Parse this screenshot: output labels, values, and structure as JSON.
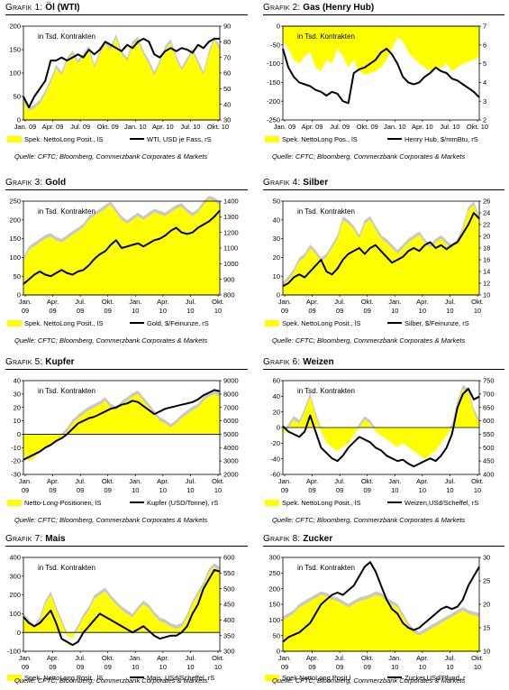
{
  "source_label": "Quelle: CFTC; Bloomberg, Commerzbank Corporates & Markets",
  "colors": {
    "area": "#ffff00",
    "area_shadow": "#c8c8c8",
    "line": "#000000",
    "axis": "#000000"
  },
  "chart_data": [
    {
      "id": "grafik1",
      "type": "area+line",
      "title_prefix": "Grafik 1:",
      "title_name": "Öl (WTI)",
      "note": "in Tsd. Kontrakten",
      "x_labels": [
        [
          "Jan. 09"
        ],
        [
          "Apr. 09"
        ],
        [
          "Jul. 09"
        ],
        [
          "Okt. 09"
        ],
        [
          "Jan. 10"
        ],
        [
          "Apr. 10"
        ],
        [
          "Jul. 10"
        ],
        [
          "Okt. 10"
        ]
      ],
      "left_axis": {
        "min": 0,
        "max": 200,
        "ticks": [
          0,
          50,
          100,
          150,
          200
        ]
      },
      "right_axis": {
        "min": 30,
        "max": 90,
        "ticks": [
          30,
          40,
          50,
          60,
          70,
          80,
          90
        ]
      },
      "area_series": {
        "name": "Spek. NettoLong Posit., lS",
        "axis": "left",
        "values": [
          40,
          20,
          25,
          35,
          55,
          80,
          110,
          95,
          125,
          140,
          120,
          135,
          150,
          110,
          140,
          160,
          150,
          175,
          140,
          125,
          160,
          170,
          140,
          120,
          95,
          120,
          150,
          165,
          130,
          105,
          125,
          145,
          120,
          95,
          140,
          170,
          150
        ]
      },
      "line_series": {
        "name": "WTI, USD je Fass, rS",
        "axis": "right",
        "values": [
          45,
          38,
          45,
          50,
          55,
          68,
          68,
          70,
          68,
          70,
          72,
          70,
          75,
          72,
          75,
          80,
          78,
          76,
          74,
          78,
          76,
          80,
          82,
          80,
          72,
          70,
          74,
          76,
          74,
          76,
          75,
          73,
          78,
          76,
          80,
          82,
          82
        ]
      }
    },
    {
      "id": "grafik2",
      "type": "area+line",
      "title_prefix": "Grafik 2:",
      "title_name": "Gas (Henry Hub)",
      "note": "in Tsd. Kontrakten",
      "x_labels": [
        [
          "Jan. 09"
        ],
        [
          "Apr. 09"
        ],
        [
          "Jul. 09"
        ],
        [
          "Okt. 09"
        ],
        [
          "Jan. 10"
        ],
        [
          "Apr. 10"
        ],
        [
          "Jul. 10"
        ],
        [
          "Okt. 10"
        ]
      ],
      "left_axis": {
        "min": -250,
        "max": 0,
        "ticks": [
          -250,
          -200,
          -150,
          -100,
          -50,
          0
        ]
      },
      "right_axis": {
        "min": 2,
        "max": 7,
        "ticks": [
          2,
          3,
          4,
          5,
          6,
          7
        ]
      },
      "area_series": {
        "name": "Spek. NettoLong Pos., lS",
        "axis": "left",
        "values": [
          -40,
          -60,
          -90,
          -100,
          -80,
          -70,
          -110,
          -120,
          -90,
          -100,
          -60,
          -80,
          -110,
          -90,
          -120,
          -130,
          -125,
          -120,
          -110,
          -90,
          -60,
          -30,
          -40,
          -70,
          -85,
          -100,
          -110,
          -120,
          -115,
          -110,
          -100,
          -120,
          -110,
          -100,
          -95,
          -90,
          -80
        ]
      },
      "line_series": {
        "name": "Henry Hub, $/mmBtu, rS",
        "axis": "right",
        "values": [
          5.8,
          4.8,
          4.3,
          4.0,
          3.9,
          3.8,
          3.6,
          3.5,
          3.3,
          3.5,
          3.4,
          3.0,
          2.9,
          4.5,
          4.7,
          4.8,
          5.0,
          5.2,
          5.6,
          5.8,
          5.5,
          5.0,
          4.3,
          4.0,
          3.9,
          4.0,
          4.3,
          4.5,
          4.8,
          4.6,
          4.5,
          4.2,
          4.1,
          3.9,
          3.7,
          3.5,
          3.2
        ]
      }
    },
    {
      "id": "grafik3",
      "type": "area+line",
      "title_prefix": "Grafik 3:",
      "title_name": "Gold",
      "note": "in Tsd. Kontrakten",
      "x_labels": [
        [
          "Jan.",
          "09"
        ],
        [
          "Apr.",
          "09"
        ],
        [
          "Jul.",
          "09"
        ],
        [
          "Okt.",
          "09"
        ],
        [
          "Jan.",
          "10"
        ],
        [
          "Apr.",
          "10"
        ],
        [
          "Jul.",
          "10"
        ],
        [
          "Okt.",
          "10"
        ]
      ],
      "left_axis": {
        "min": 0,
        "max": 250,
        "ticks": [
          0,
          50,
          100,
          150,
          200,
          250
        ]
      },
      "right_axis": {
        "min": 800,
        "max": 1400,
        "ticks": [
          800,
          900,
          1000,
          1100,
          1200,
          1300,
          1400
        ]
      },
      "area_series": {
        "name": "Spek. NettoLong Posit., lS",
        "axis": "left",
        "values": [
          90,
          120,
          130,
          140,
          150,
          155,
          145,
          140,
          150,
          160,
          170,
          180,
          200,
          210,
          220,
          230,
          240,
          220,
          200,
          190,
          200,
          210,
          200,
          210,
          220,
          215,
          210,
          220,
          230,
          235,
          220,
          210,
          220,
          240,
          255,
          250,
          240
        ]
      },
      "line_series": {
        "name": "Gold, $/Feinunze, rS",
        "axis": "right",
        "values": [
          870,
          900,
          930,
          950,
          930,
          920,
          940,
          960,
          940,
          930,
          950,
          960,
          990,
          1030,
          1060,
          1080,
          1120,
          1150,
          1100,
          1110,
          1120,
          1130,
          1110,
          1130,
          1150,
          1160,
          1180,
          1210,
          1230,
          1200,
          1190,
          1200,
          1230,
          1250,
          1270,
          1300,
          1340
        ]
      }
    },
    {
      "id": "grafik4",
      "type": "area+line",
      "title_prefix": "Grafik 4:",
      "title_name": "Silber",
      "note": "in Tsd. Kontrakten",
      "x_labels": [
        [
          "Jan.",
          "09"
        ],
        [
          "Apr.",
          "09"
        ],
        [
          "Jul.",
          "09"
        ],
        [
          "Okt.",
          "09"
        ],
        [
          "Jan.",
          "10"
        ],
        [
          "Apr.",
          "10"
        ],
        [
          "Jul.",
          "10"
        ],
        [
          "Okt.",
          "10"
        ]
      ],
      "left_axis": {
        "min": 0,
        "max": 50,
        "ticks": [
          0,
          10,
          20,
          30,
          40,
          50
        ]
      },
      "right_axis": {
        "min": 10,
        "max": 26,
        "ticks": [
          10,
          12,
          14,
          16,
          18,
          20,
          22,
          24,
          26
        ]
      },
      "area_series": {
        "name": "Spek. NettoLong Posit., lS",
        "axis": "left",
        "values": [
          5,
          8,
          12,
          18,
          20,
          25,
          22,
          18,
          20,
          25,
          30,
          40,
          38,
          35,
          30,
          38,
          40,
          35,
          30,
          28,
          25,
          22,
          25,
          28,
          30,
          32,
          28,
          25,
          28,
          30,
          27,
          25,
          28,
          35,
          45,
          48,
          40
        ]
      },
      "line_series": {
        "name": "Silber, $/Feinunze, rS",
        "axis": "right",
        "values": [
          11.5,
          12.0,
          13.0,
          13.5,
          13.0,
          14.0,
          15.0,
          16.0,
          14.0,
          13.5,
          14.5,
          16.0,
          17.0,
          17.5,
          18.0,
          17.0,
          18.0,
          18.5,
          17.5,
          16.5,
          15.5,
          16.0,
          16.5,
          17.5,
          18.0,
          17.5,
          18.5,
          19.0,
          18.0,
          18.5,
          17.8,
          18.5,
          19.0,
          20.5,
          22.0,
          24.0,
          23.0
        ]
      }
    },
    {
      "id": "grafik5",
      "type": "area+line",
      "title_prefix": "Grafik 5:",
      "title_name": "Kupfer",
      "note": "in Tsd. Kontrakten",
      "x_labels": [
        [
          "Jan.",
          "09"
        ],
        [
          "Apr.",
          "09"
        ],
        [
          "Jul.",
          "09"
        ],
        [
          "Okt.",
          "09"
        ],
        [
          "Jan.",
          "10"
        ],
        [
          "Apr.",
          "10"
        ],
        [
          "Jul.",
          "10"
        ],
        [
          "Okt.",
          "10"
        ]
      ],
      "left_axis": {
        "min": -30,
        "max": 40,
        "ticks": [
          -30,
          -20,
          -10,
          0,
          10,
          20,
          30,
          40
        ]
      },
      "right_axis": {
        "min": 2000,
        "max": 9000,
        "ticks": [
          2000,
          3000,
          4000,
          5000,
          6000,
          7000,
          8000,
          9000
        ]
      },
      "area_series": {
        "name": "Netto-Long-Positionen, lS",
        "axis": "left",
        "values": [
          -15,
          -20,
          -18,
          -12,
          -10,
          -8,
          -5,
          -2,
          2,
          8,
          12,
          15,
          18,
          20,
          22,
          25,
          20,
          18,
          22,
          25,
          28,
          30,
          25,
          20,
          15,
          10,
          8,
          5,
          8,
          12,
          15,
          18,
          20,
          25,
          28,
          30,
          28
        ]
      },
      "line_series": {
        "name": "Kupfer (USD/Tonne), rS",
        "axis": "right",
        "values": [
          3100,
          3300,
          3500,
          3700,
          4000,
          4200,
          4500,
          4700,
          5000,
          5400,
          5800,
          6000,
          6200,
          6300,
          6500,
          6700,
          6900,
          7000,
          7200,
          7300,
          7500,
          7400,
          7100,
          6800,
          6500,
          6700,
          6900,
          7000,
          7100,
          7200,
          7300,
          7400,
          7600,
          7900,
          8100,
          8300,
          8200
        ]
      }
    },
    {
      "id": "grafik6",
      "type": "area+line",
      "title_prefix": "Grafik 6:",
      "title_name": "Weizen",
      "note": "in Tsd. Kontrakten",
      "x_labels": [
        [
          "Jan.",
          "09"
        ],
        [
          "Apr.",
          "09"
        ],
        [
          "Jul.",
          "09"
        ],
        [
          "Okt.",
          "09"
        ],
        [
          "Jan.",
          "10"
        ],
        [
          "Apr.",
          "10"
        ],
        [
          "Jul.",
          "10"
        ],
        [
          "Okt.",
          "10"
        ]
      ],
      "left_axis": {
        "min": -60,
        "max": 60,
        "ticks": [
          -60,
          -40,
          -20,
          0,
          20,
          40,
          60
        ]
      },
      "right_axis": {
        "min": 400,
        "max": 750,
        "ticks": [
          400,
          450,
          500,
          550,
          600,
          650,
          700,
          750
        ]
      },
      "area_series": {
        "name": "Spek. NettoLong Posit., lS",
        "axis": "left",
        "values": [
          -10,
          0,
          10,
          5,
          20,
          40,
          15,
          -5,
          -20,
          -25,
          -30,
          -25,
          -20,
          -10,
          0,
          10,
          5,
          -5,
          -10,
          -15,
          -20,
          -25,
          -20,
          -25,
          -30,
          -35,
          -40,
          -35,
          -30,
          -20,
          -10,
          0,
          30,
          50,
          45,
          20,
          5
        ]
      },
      "line_series": {
        "name": "Weizen,USd/Scheffel, rS",
        "axis": "right",
        "values": [
          580,
          560,
          550,
          540,
          560,
          620,
          560,
          500,
          480,
          460,
          450,
          470,
          500,
          520,
          540,
          530,
          520,
          500,
          490,
          470,
          460,
          450,
          455,
          440,
          430,
          440,
          450,
          460,
          450,
          470,
          500,
          550,
          650,
          700,
          720,
          680,
          690
        ]
      }
    },
    {
      "id": "grafik7",
      "type": "area+line",
      "title_prefix": "Grafik 7:",
      "title_name": "Mais",
      "note": "in Tsd. Kontrakten",
      "x_labels": [
        [
          "Jan.",
          "09"
        ],
        [
          "Apr.",
          "09"
        ],
        [
          "Jul.",
          "09"
        ],
        [
          "Okt.",
          "09"
        ],
        [
          "Jan.",
          "10"
        ],
        [
          "Apr.",
          "10"
        ],
        [
          "Jul.",
          "10"
        ],
        [
          "Okt.",
          "10"
        ]
      ],
      "left_axis": {
        "min": -100,
        "max": 400,
        "ticks": [
          -100,
          0,
          100,
          200,
          300,
          400
        ]
      },
      "right_axis": {
        "min": 300,
        "max": 600,
        "ticks": [
          300,
          350,
          400,
          450,
          500,
          550,
          600
        ]
      },
      "area_series": {
        "name": "Spek. NettoLong Posit., lS",
        "axis": "left",
        "values": [
          80,
          50,
          20,
          60,
          150,
          200,
          120,
          50,
          -20,
          -30,
          20,
          80,
          120,
          180,
          200,
          220,
          180,
          150,
          120,
          100,
          80,
          120,
          150,
          130,
          90,
          60,
          50,
          30,
          20,
          30,
          80,
          150,
          200,
          250,
          320,
          350,
          330
        ]
      },
      "line_series": {
        "name": "Mais, USd/Scheffel, rS",
        "axis": "right",
        "values": [
          410,
          390,
          380,
          390,
          410,
          430,
          390,
          340,
          330,
          320,
          330,
          360,
          380,
          400,
          420,
          410,
          400,
          390,
          380,
          370,
          360,
          370,
          380,
          365,
          350,
          340,
          345,
          350,
          350,
          360,
          380,
          420,
          450,
          500,
          530,
          560,
          555
        ]
      }
    },
    {
      "id": "grafik8",
      "type": "area+line",
      "title_prefix": "Grafik 8:",
      "title_name": "Zucker",
      "note": "in Tsd. Kontrakten",
      "x_labels": [
        [
          "Jan.",
          "09"
        ],
        [
          "Apr.",
          "09"
        ],
        [
          "Jul.",
          "09"
        ],
        [
          "Okt.",
          "09"
        ],
        [
          "Jan.",
          "10"
        ],
        [
          "Apr.",
          "10"
        ],
        [
          "Jul.",
          "10"
        ],
        [
          "Okt.",
          "10"
        ]
      ],
      "left_axis": {
        "min": 0,
        "max": 300,
        "ticks": [
          0,
          50,
          100,
          150,
          200,
          250,
          300
        ]
      },
      "right_axis": {
        "min": 10,
        "max": 30,
        "ticks": [
          10,
          15,
          20,
          25,
          30
        ]
      },
      "area_series": {
        "name": "Spek NettoLong Posit,l",
        "axis": "left",
        "values": [
          100,
          110,
          120,
          140,
          150,
          160,
          170,
          180,
          175,
          165,
          160,
          150,
          140,
          150,
          160,
          165,
          170,
          180,
          175,
          160,
          150,
          140,
          110,
          80,
          60,
          50,
          60,
          70,
          80,
          90,
          100,
          110,
          120,
          130,
          120,
          115,
          110
        ]
      },
      "line_series": {
        "name": "Zucker,USd/Pfund, r",
        "axis": "right",
        "values": [
          12,
          13,
          13.5,
          14,
          15,
          16,
          18,
          20,
          21,
          22,
          22.5,
          22,
          23,
          24,
          26,
          28,
          29,
          27,
          24,
          21,
          19,
          18,
          16,
          15,
          14.5,
          15,
          16,
          17,
          18,
          19,
          19.5,
          19,
          19.5,
          21,
          24,
          26,
          28
        ]
      }
    }
  ]
}
